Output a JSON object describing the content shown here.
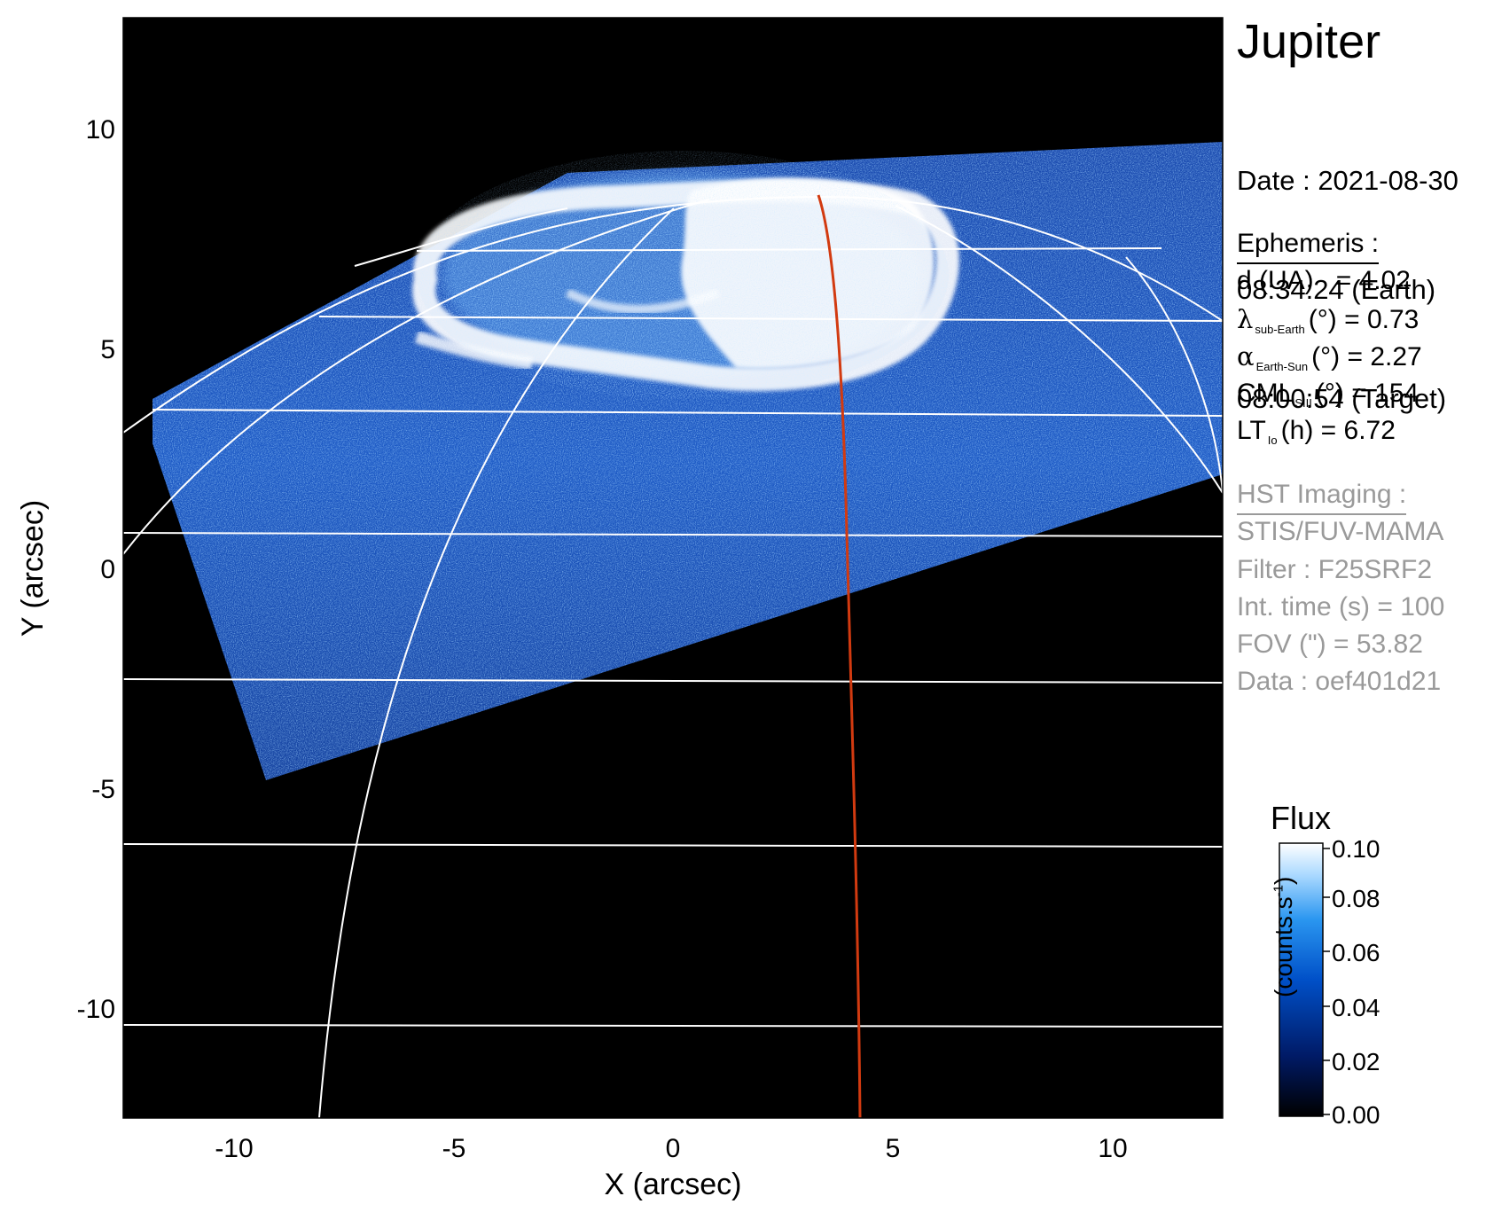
{
  "figure": {
    "target": "Jupiter",
    "date_lines": [
      "Date : 2021-08-30",
      "08:34:24 (Earth)",
      "08:00:54 (Target)"
    ],
    "ephemeris": {
      "header": "Ephemeris :",
      "rows": [
        {
          "label": "d (UA)",
          "value": "= 4.02"
        },
        {
          "symbol": "λ",
          "sub": "sub-Earth",
          "unit": "(°)",
          "value": "= 0.73"
        },
        {
          "symbol": "α",
          "sub": "Earth-Sun",
          "unit": "(°)",
          "value": "= 2.27"
        },
        {
          "symbol": "CML",
          "sub": "SIII",
          "unit": "(°)",
          "value": "= 154"
        },
        {
          "symbol": "LT",
          "sub": "Io",
          "unit": "(h)",
          "value": "= 6.72"
        }
      ]
    },
    "hst": {
      "header": "HST Imaging :",
      "rows": [
        "STIS/FUV-MAMA",
        "Filter : F25SRF2",
        "Int. time (s) = 100",
        "FOV (\") = 53.82",
        "Data : oef401d21"
      ]
    },
    "colorbar": {
      "title": "Flux",
      "unit": "(counts.s",
      "unit_sup": "-1",
      "unit_close": ")",
      "ticks": [
        "0.10",
        "0.08",
        "0.06",
        "0.04",
        "0.02",
        "0.00"
      ],
      "range": [
        0,
        0.1
      ],
      "colors": [
        "#000000",
        "#001a66",
        "#0050c8",
        "#2a96f0",
        "#a8d8ff",
        "#ffffff"
      ]
    },
    "axes": {
      "xlabel": "X (arcsec)",
      "ylabel": "Y (arcsec)",
      "xlim": [
        -12.5,
        12.5
      ],
      "ylim": [
        -12.5,
        12.5
      ],
      "xticks": [
        "-10",
        "-5",
        "0",
        "5",
        "10"
      ],
      "yticks": [
        "10",
        "5",
        "0",
        "-5",
        "-10"
      ]
    },
    "colors": {
      "background": "#000000",
      "grid": "#ffffff",
      "meridian_line": "#d23a10",
      "hst_text": "#9a9a9a"
    }
  }
}
